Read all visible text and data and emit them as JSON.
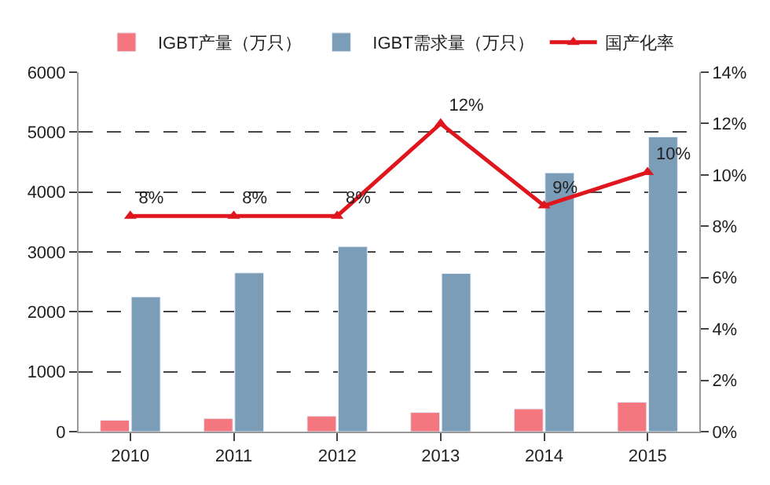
{
  "chart_data": {
    "type": "bar",
    "categories": [
      "2010",
      "2011",
      "2012",
      "2013",
      "2014",
      "2015"
    ],
    "series": [
      {
        "name": "IGBT产量（万只）",
        "color": "#f4777f",
        "values": [
          190,
          220,
          260,
          320,
          380,
          490
        ]
      },
      {
        "name": "IGBT需求量（万只）",
        "color": "#7b9db8",
        "values": [
          2250,
          2650,
          3090,
          2640,
          4320,
          4920
        ]
      },
      {
        "name": "国产化率",
        "type": "line",
        "axis": "y2",
        "color": "#e0161e",
        "values": [
          8.4,
          8.4,
          8.4,
          12,
          8.8,
          10.1
        ],
        "value_labels": [
          "8%",
          "8%",
          "8%",
          "12%",
          "9%",
          "10%"
        ]
      }
    ],
    "ylim": [
      0,
      6000
    ],
    "yticks": [
      0,
      1000,
      2000,
      3000,
      4000,
      5000,
      6000
    ],
    "y2lim": [
      0,
      14
    ],
    "y2ticks": [
      {
        "value": 0,
        "label": "0%"
      },
      {
        "value": 2,
        "label": "2%"
      },
      {
        "value": 4,
        "label": "4%"
      },
      {
        "value": 6,
        "label": "6%"
      },
      {
        "value": 8,
        "label": "8%"
      },
      {
        "value": 10,
        "label": "10%"
      },
      {
        "value": 12,
        "label": "12%"
      },
      {
        "value": 14,
        "label": "14%"
      }
    ],
    "grid": "y",
    "legend": "top",
    "marker": "triangle"
  }
}
